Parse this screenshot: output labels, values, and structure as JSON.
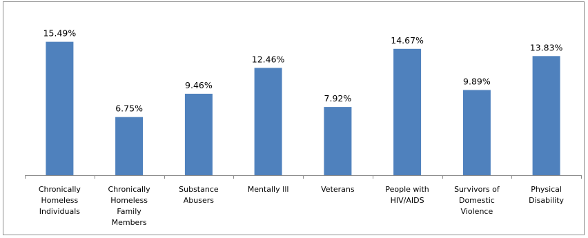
{
  "chart_data": {
    "type": "bar",
    "title": "",
    "xlabel": "",
    "ylabel": "",
    "ylim": [
      0,
      16.5
    ],
    "grid": false,
    "legend": "none",
    "bar_color": "#4f81bd",
    "categories": [
      "Chronically Homeless Individuals",
      "Chronically Homeless Family Members",
      "Substance Abusers",
      "Mentally Ill",
      "Veterans",
      "People with HIV/AIDS",
      "Survivors of Domestic Violence",
      "Physical Disability"
    ],
    "category_lines": [
      [
        "Chronically",
        "Homeless",
        "Individuals"
      ],
      [
        "Chronically",
        "Homeless",
        "Family",
        "Members"
      ],
      [
        "Substance",
        "Abusers"
      ],
      [
        "Mentally Ill"
      ],
      [
        "Veterans"
      ],
      [
        "People with",
        "HIV/AIDS"
      ],
      [
        "Survivors of",
        "Domestic",
        "Violence"
      ],
      [
        "Physical",
        "Disability"
      ]
    ],
    "values": [
      15.49,
      6.75,
      9.46,
      12.46,
      7.92,
      14.67,
      9.89,
      13.83
    ],
    "data_labels": [
      "15.49%",
      "6.75%",
      "9.46%",
      "12.46%",
      "7.92%",
      "14.67%",
      "9.89%",
      "13.83%"
    ]
  }
}
